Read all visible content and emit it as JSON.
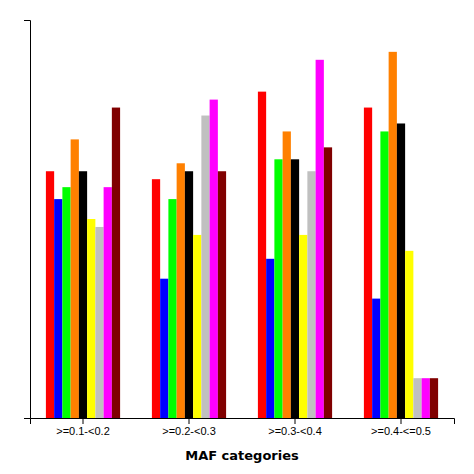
{
  "chart_data": {
    "type": "bar",
    "xlabel": "MAF categories",
    "categories": [
      ">=0.1-<0.2",
      ">=0.2-<0.3",
      ">=0.3-<0.4",
      ">=0.4-<=0.5"
    ],
    "series": [
      {
        "color": "#ff0000",
        "values": [
          0.62,
          0.6,
          0.82,
          0.78
        ]
      },
      {
        "color": "#0000ff",
        "values": [
          0.55,
          0.35,
          0.4,
          0.3
        ]
      },
      {
        "color": "#00ff00",
        "values": [
          0.58,
          0.55,
          0.65,
          0.72
        ]
      },
      {
        "color": "#ff8000",
        "values": [
          0.7,
          0.64,
          0.72,
          0.92
        ]
      },
      {
        "color": "#000000",
        "values": [
          0.62,
          0.62,
          0.65,
          0.74
        ]
      },
      {
        "color": "#ffff00",
        "values": [
          0.5,
          0.46,
          0.46,
          0.42
        ]
      },
      {
        "color": "#c0c0c0",
        "values": [
          0.48,
          0.76,
          0.62,
          0.1
        ]
      },
      {
        "color": "#ff00ff",
        "values": [
          0.58,
          0.8,
          0.9,
          0.1
        ]
      },
      {
        "color": "#800000",
        "values": [
          0.78,
          0.62,
          0.68,
          0.1
        ]
      }
    ],
    "ylim": [
      0,
      1.0
    ],
    "tick_labels": "x"
  }
}
